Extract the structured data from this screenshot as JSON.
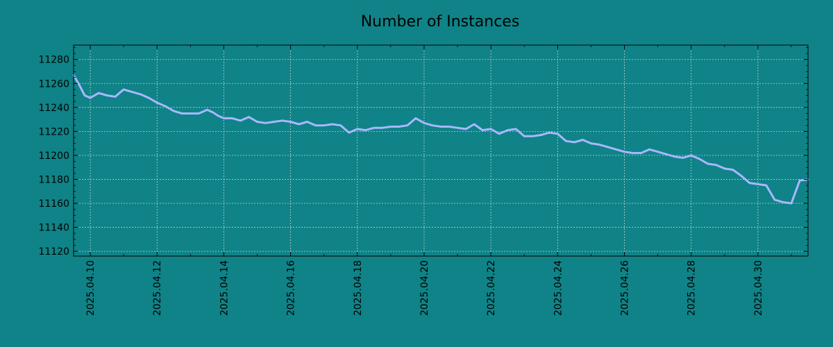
{
  "chart_data": {
    "type": "line",
    "title": "Number of Instances",
    "xlabel": "",
    "ylabel": "",
    "xlim": [
      "2025-04-09T12:00",
      "2025-05-01T12:00"
    ],
    "ylim": [
      11116,
      11292
    ],
    "grid": true,
    "colors": {
      "background": "#0f8387",
      "line": "#a9b7ff",
      "grid": "#bcd4d2",
      "axis": "#000000"
    },
    "y_ticks": [
      "11120",
      "11140",
      "11160",
      "11180",
      "11200",
      "11220",
      "11240",
      "11260",
      "11280"
    ],
    "x_ticks": [
      {
        "date": "2025-04-10",
        "label": "2025.04.10"
      },
      {
        "date": "2025-04-12",
        "label": "2025.04.12"
      },
      {
        "date": "2025-04-14",
        "label": "2025.04.14"
      },
      {
        "date": "2025-04-16",
        "label": "2025.04.16"
      },
      {
        "date": "2025-04-18",
        "label": "2025.04.18"
      },
      {
        "date": "2025-04-20",
        "label": "2025.04.20"
      },
      {
        "date": "2025-04-22",
        "label": "2025.04.22"
      },
      {
        "date": "2025-04-24",
        "label": "2025.04.24"
      },
      {
        "date": "2025-04-26",
        "label": "2025.04.26"
      },
      {
        "date": "2025-04-28",
        "label": "2025.04.28"
      },
      {
        "date": "2025-04-30",
        "label": "2025.04.30"
      }
    ],
    "series": [
      {
        "x": [
          "2025-04-09T12:00",
          "2025-04-09T16:00",
          "2025-04-09T20:00",
          "2025-04-10T00:00",
          "2025-04-10T06:00",
          "2025-04-10T12:00",
          "2025-04-10T18:00",
          "2025-04-11T00:00",
          "2025-04-11T06:00",
          "2025-04-11T12:00",
          "2025-04-11T18:00",
          "2025-04-12T00:00",
          "2025-04-12T06:00",
          "2025-04-12T12:00",
          "2025-04-12T18:00",
          "2025-04-13T00:00",
          "2025-04-13T06:00",
          "2025-04-13T12:00",
          "2025-04-13T16:00",
          "2025-04-13T20:00",
          "2025-04-14T00:00",
          "2025-04-14T06:00",
          "2025-04-14T12:00",
          "2025-04-14T18:00",
          "2025-04-15T00:00",
          "2025-04-15T06:00",
          "2025-04-15T12:00",
          "2025-04-15T18:00",
          "2025-04-16T00:00",
          "2025-04-16T06:00",
          "2025-04-16T12:00",
          "2025-04-16T18:00",
          "2025-04-17T00:00",
          "2025-04-17T06:00",
          "2025-04-17T12:00",
          "2025-04-17T18:00",
          "2025-04-18T00:00",
          "2025-04-18T06:00",
          "2025-04-18T12:00",
          "2025-04-18T18:00",
          "2025-04-19T00:00",
          "2025-04-19T06:00",
          "2025-04-19T12:00",
          "2025-04-19T18:00",
          "2025-04-20T00:00",
          "2025-04-20T06:00",
          "2025-04-20T12:00",
          "2025-04-20T18:00",
          "2025-04-21T00:00",
          "2025-04-21T06:00",
          "2025-04-21T12:00",
          "2025-04-21T18:00",
          "2025-04-22T00:00",
          "2025-04-22T06:00",
          "2025-04-22T12:00",
          "2025-04-22T18:00",
          "2025-04-23T00:00",
          "2025-04-23T06:00",
          "2025-04-23T12:00",
          "2025-04-23T18:00",
          "2025-04-24T00:00",
          "2025-04-24T06:00",
          "2025-04-24T12:00",
          "2025-04-24T18:00",
          "2025-04-25T00:00",
          "2025-04-25T06:00",
          "2025-04-25T12:00",
          "2025-04-25T18:00",
          "2025-04-26T00:00",
          "2025-04-26T06:00",
          "2025-04-26T12:00",
          "2025-04-26T18:00",
          "2025-04-27T00:00",
          "2025-04-27T06:00",
          "2025-04-27T12:00",
          "2025-04-27T18:00",
          "2025-04-28T00:00",
          "2025-04-28T06:00",
          "2025-04-28T12:00",
          "2025-04-28T18:00",
          "2025-04-29T00:00",
          "2025-04-29T06:00",
          "2025-04-29T12:00",
          "2025-04-29T18:00",
          "2025-04-30T00:00",
          "2025-04-30T06:00",
          "2025-04-30T12:00",
          "2025-04-30T18:00",
          "2025-05-01T00:00",
          "2025-05-01T06:00",
          "2025-05-01T12:00"
        ],
        "values": [
          11267,
          11259,
          11250,
          11248,
          11252,
          11250,
          11249,
          11255,
          11253,
          11251,
          11248,
          11244,
          11241,
          11237,
          11235,
          11235,
          11235,
          11238,
          11236,
          11233,
          11231,
          11231,
          11229,
          11232,
          11228,
          11227,
          11228,
          11229,
          11228,
          11226,
          11228,
          11225,
          11225,
          11226,
          11225,
          11219,
          11222,
          11221,
          11223,
          11223,
          11224,
          11224,
          11225,
          11231,
          11227,
          11225,
          11224,
          11224,
          11223,
          11222,
          11226,
          11221,
          11222,
          11218,
          11221,
          11222,
          11216,
          11216,
          11217,
          11219,
          11218,
          11212,
          11211,
          11213,
          11210,
          11209,
          11207,
          11205,
          11203,
          11202,
          11202,
          11205,
          11203,
          11201,
          11199,
          11198,
          11200,
          11197,
          11193,
          11192,
          11189,
          11188,
          11183,
          11177,
          11176,
          11175,
          11163,
          11161,
          11160,
          11179,
          11180
        ],
        "name": ""
      }
    ]
  }
}
